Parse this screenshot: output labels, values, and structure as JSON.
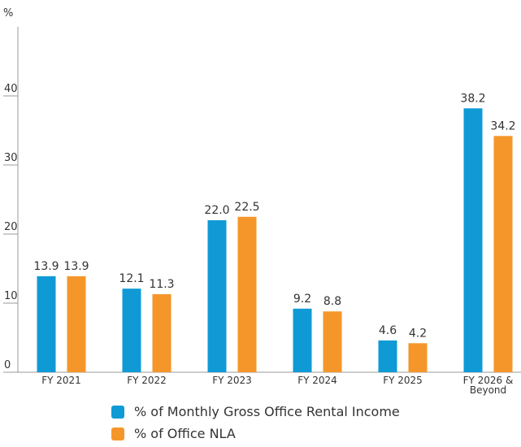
{
  "chart_data": {
    "type": "bar",
    "y_label": "%",
    "categories": [
      "FY 2021",
      "FY 2022",
      "FY 2023",
      "FY 2024",
      "FY 2025",
      "FY 2026 & Beyond"
    ],
    "series": [
      {
        "name": "% of Monthly Gross Office Rental Income",
        "color": "#0f9ad6",
        "values": [
          13.9,
          12.1,
          22.0,
          9.2,
          4.6,
          38.2
        ],
        "value_labels": [
          "13.9",
          "12.1",
          "22.0",
          "9.2",
          "4.6",
          "38.2"
        ]
      },
      {
        "name": "% of Office NLA",
        "color": "#f5962a",
        "values": [
          13.9,
          11.3,
          22.5,
          8.8,
          4.2,
          34.2
        ],
        "value_labels": [
          "13.9",
          "11.3",
          "22.5",
          "8.8",
          "4.2",
          "34.2"
        ]
      }
    ],
    "ylim": [
      0,
      50
    ],
    "yticks": [
      0,
      10,
      20,
      30,
      40
    ],
    "grid": false
  }
}
